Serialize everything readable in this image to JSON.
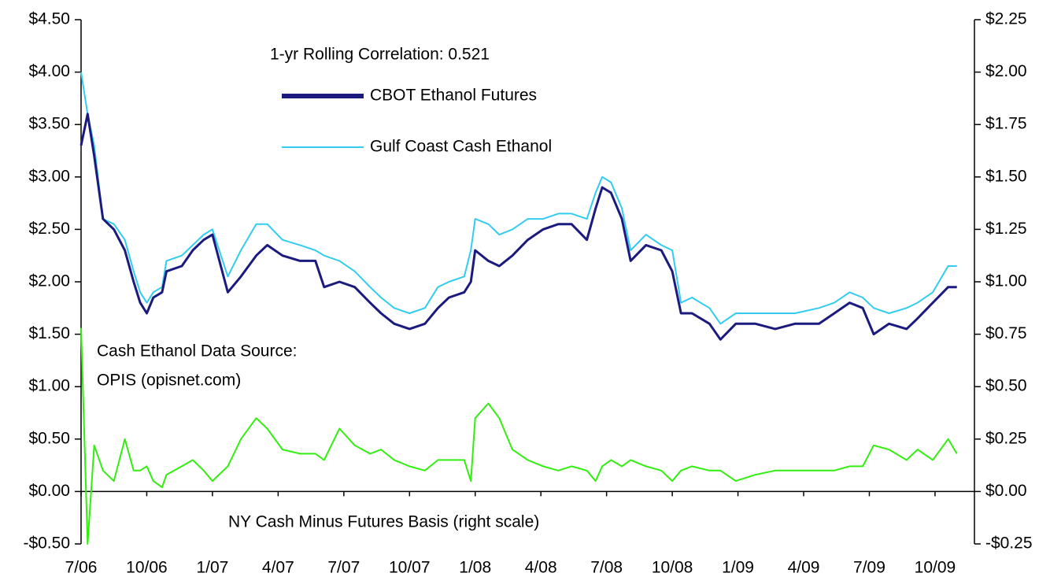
{
  "chart_data": {
    "type": "line",
    "annotations": [
      "1-yr Rolling Correlation:  0.521",
      "Cash Ethanol Data Source:",
      "OPIS (opisnet.com)",
      "NY Cash Minus Futures Basis (right scale)"
    ],
    "x": [
      0,
      0.3,
      0.6,
      1,
      1.5,
      2,
      2.4,
      2.7,
      3,
      3.3,
      3.7,
      3.9,
      4.6,
      5.1,
      5.6,
      6,
      6.7,
      7.3,
      8,
      8.5,
      9.2,
      10,
      10.7,
      11.1,
      11.8,
      12.5,
      13.2,
      13.7,
      14.3,
      15,
      15.7,
      16.3,
      16.8,
      17.5,
      17.8,
      18,
      18.6,
      19.1,
      19.7,
      20.4,
      21.1,
      21.8,
      22.4,
      23.1,
      23.5,
      23.8,
      24.2,
      24.7,
      25.1,
      25.8,
      26.5,
      27,
      27.4,
      27.9,
      28.7,
      29.2,
      29.9,
      30.8,
      31.7,
      32.6,
      33.7,
      34.4,
      35.1,
      35.7,
      36.2,
      36.9,
      37.7,
      38.2,
      38.9,
      39.6,
      40
    ],
    "xlim": [
      0,
      40.8
    ],
    "xticks": [
      {
        "value": 0,
        "label": "7/06"
      },
      {
        "value": 3,
        "label": "10/06"
      },
      {
        "value": 6,
        "label": "1/07"
      },
      {
        "value": 9,
        "label": "4/07"
      },
      {
        "value": 12,
        "label": "7/07"
      },
      {
        "value": 15,
        "label": "10/07"
      },
      {
        "value": 18,
        "label": "1/08"
      },
      {
        "value": 21,
        "label": "4/08"
      },
      {
        "value": 24,
        "label": "7/08"
      },
      {
        "value": 27,
        "label": "10/08"
      },
      {
        "value": 30,
        "label": "1/09"
      },
      {
        "value": 33,
        "label": "4/09"
      },
      {
        "value": 36,
        "label": "7/09"
      },
      {
        "value": 39,
        "label": "10/09"
      }
    ],
    "ylim": [
      -0.5,
      4.5
    ],
    "yticks": [
      {
        "value": 4.5,
        "label": "$4.50"
      },
      {
        "value": 4,
        "label": "$4.00"
      },
      {
        "value": 3.5,
        "label": "$3.50"
      },
      {
        "value": 3,
        "label": "$3.00"
      },
      {
        "value": 2.5,
        "label": "$2.50"
      },
      {
        "value": 2,
        "label": "$2.00"
      },
      {
        "value": 1.5,
        "label": "$1.50"
      },
      {
        "value": 1,
        "label": "$1.00"
      },
      {
        "value": 0.5,
        "label": "$0.50"
      },
      {
        "value": 0,
        "label": "$0.00"
      },
      {
        "value": -0.5,
        "label": "-$0.50"
      }
    ],
    "y2lim": [
      -0.25,
      2.25
    ],
    "y2ticks": [
      {
        "value": 2.25,
        "label": "$2.25"
      },
      {
        "value": 2,
        "label": "$2.00"
      },
      {
        "value": 1.75,
        "label": "$1.75"
      },
      {
        "value": 1.5,
        "label": "$1.50"
      },
      {
        "value": 1.25,
        "label": "$1.25"
      },
      {
        "value": 1,
        "label": "$1.00"
      },
      {
        "value": 0.75,
        "label": "$0.75"
      },
      {
        "value": 0.5,
        "label": "$0.50"
      },
      {
        "value": 0.25,
        "label": "$0.25"
      },
      {
        "value": 0,
        "label": "$0.00"
      },
      {
        "value": -0.25,
        "label": "-$0.25"
      }
    ],
    "series": [
      {
        "name": "CBOT Ethanol Futures",
        "color": "#1b1a7e",
        "width": 3,
        "values": [
          3.3,
          3.6,
          3.2,
          2.6,
          2.5,
          2.3,
          2.0,
          1.8,
          1.7,
          1.85,
          1.9,
          2.1,
          2.15,
          2.3,
          2.4,
          2.45,
          1.9,
          2.05,
          2.25,
          2.35,
          2.25,
          2.2,
          2.2,
          1.95,
          2.0,
          1.95,
          1.8,
          1.7,
          1.6,
          1.55,
          1.6,
          1.75,
          1.85,
          1.9,
          2.0,
          2.3,
          2.2,
          2.15,
          2.25,
          2.4,
          2.5,
          2.55,
          2.55,
          2.4,
          2.7,
          2.9,
          2.85,
          2.6,
          2.2,
          2.35,
          2.3,
          2.1,
          1.7,
          1.7,
          1.6,
          1.45,
          1.6,
          1.6,
          1.55,
          1.6,
          1.6,
          1.7,
          1.8,
          1.75,
          1.5,
          1.6,
          1.55,
          1.65,
          1.8,
          1.95,
          1.95
        ]
      },
      {
        "name": "Gulf Coast Cash Ethanol",
        "color": "#33ccee",
        "width": 2,
        "values": [
          4.0,
          3.6,
          3.3,
          2.6,
          2.55,
          2.4,
          2.1,
          1.9,
          1.8,
          1.9,
          1.95,
          2.2,
          2.25,
          2.35,
          2.45,
          2.5,
          2.05,
          2.3,
          2.55,
          2.55,
          2.4,
          2.35,
          2.3,
          2.25,
          2.2,
          2.1,
          1.95,
          1.85,
          1.75,
          1.7,
          1.75,
          1.95,
          2.0,
          2.05,
          2.3,
          2.6,
          2.55,
          2.45,
          2.5,
          2.6,
          2.6,
          2.65,
          2.65,
          2.6,
          2.85,
          3.0,
          2.95,
          2.7,
          2.3,
          2.45,
          2.35,
          2.3,
          1.8,
          1.85,
          1.75,
          1.6,
          1.7,
          1.7,
          1.7,
          1.7,
          1.75,
          1.8,
          1.9,
          1.85,
          1.75,
          1.7,
          1.75,
          1.8,
          1.9,
          2.15,
          2.15
        ]
      },
      {
        "name": "NY Cash Minus Futures Basis",
        "color": "#33ee11",
        "width": 2,
        "axis": "y2",
        "values": [
          0.78,
          -0.25,
          0.22,
          0.1,
          0.05,
          0.25,
          0.1,
          0.1,
          0.12,
          0.05,
          0.02,
          0.08,
          0.12,
          0.15,
          0.1,
          0.05,
          0.12,
          0.25,
          0.35,
          0.3,
          0.2,
          0.18,
          0.18,
          0.15,
          0.3,
          0.22,
          0.18,
          0.2,
          0.15,
          0.12,
          0.1,
          0.15,
          0.15,
          0.15,
          0.05,
          0.35,
          0.42,
          0.35,
          0.2,
          0.15,
          0.12,
          0.1,
          0.12,
          0.1,
          0.05,
          0.12,
          0.15,
          0.12,
          0.15,
          0.12,
          0.1,
          0.05,
          0.1,
          0.12,
          0.1,
          0.1,
          0.05,
          0.08,
          0.1,
          0.1,
          0.1,
          0.1,
          0.12,
          0.12,
          0.22,
          0.2,
          0.15,
          0.2,
          0.15,
          0.25,
          0.18
        ]
      }
    ]
  }
}
